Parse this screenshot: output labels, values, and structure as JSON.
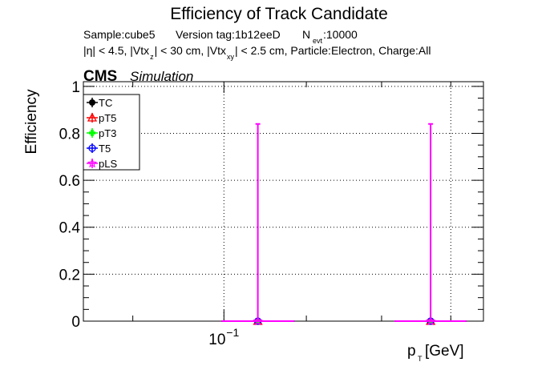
{
  "header": {
    "title": "Efficiency of Track Candidate",
    "info1_sample": "Sample:cube5",
    "info1_version": "Version tag:1b12eeD",
    "info1_nevt_n": "N",
    "info1_nevt_sub": "evt",
    "info1_nevt_val": ":10000",
    "info2_a": "|η| < 4.5, |Vtx",
    "info2_a_sub": "z",
    "info2_b": "| < 30 cm, |Vtx",
    "info2_b_sub": "xy",
    "info2_c": "| < 2.5 cm, Particle:Electron, Charge:All"
  },
  "cms_label": "CMS",
  "simulation_label": "Simulation",
  "chart_data": {
    "type": "scatter",
    "title": "Efficiency of Track Candidate",
    "ylabel": "Efficiency",
    "xlabel_main": "p",
    "xlabel_sub": "T",
    "xlabel_unit": " [GeV]",
    "xscale": "log",
    "xlim": [
      0.085,
      0.135
    ],
    "ylim": [
      0,
      1.02
    ],
    "grid": true,
    "legend_position": "top-left",
    "y_ticks": [
      "0",
      "0.2",
      "0.4",
      "0.6",
      "0.8",
      "1"
    ],
    "x_tick_label": {
      "base": "10",
      "exp": "−1",
      "value": 0.1
    },
    "series": [
      {
        "name": "TC",
        "color": "#000000",
        "marker": "filled-circle",
        "x": [
          0.104,
          0.127
        ],
        "y": [
          0,
          0
        ],
        "xerr_low": [
          0.0043,
          0.0052
        ],
        "xerr_high": [
          0.0045,
          0.0054
        ],
        "yerr_high": [
          0,
          0
        ]
      },
      {
        "name": "pT5",
        "color": "#ff0000",
        "marker": "open-triangle",
        "x": [
          0.104,
          0.127
        ],
        "y": [
          0,
          0
        ],
        "xerr_low": [
          0.0043,
          0.0052
        ],
        "xerr_high": [
          0.0045,
          0.0054
        ],
        "yerr_high": [
          0,
          0
        ]
      },
      {
        "name": "pT3",
        "color": "#00ff00",
        "marker": "filled-cross",
        "x": [
          0.104,
          0.127
        ],
        "y": [
          0,
          0
        ],
        "xerr_low": [
          0.0043,
          0.0052
        ],
        "xerr_high": [
          0.0045,
          0.0054
        ],
        "yerr_high": [
          0,
          0
        ]
      },
      {
        "name": "T5",
        "color": "#0000ff",
        "marker": "open-circle",
        "x": [
          0.104,
          0.127
        ],
        "y": [
          0,
          0
        ],
        "xerr_low": [
          0.0043,
          0.0052
        ],
        "xerr_high": [
          0.0045,
          0.0054
        ],
        "yerr_high": [
          0,
          0
        ]
      },
      {
        "name": "pLS",
        "color": "#ff00ff",
        "marker": "open-star",
        "x": [
          0.104,
          0.127
        ],
        "y": [
          0,
          0
        ],
        "xerr_low": [
          0.0043,
          0.0052
        ],
        "xerr_high": [
          0.0045,
          0.0054
        ],
        "yerr_high": [
          0.84,
          0.84
        ]
      }
    ]
  }
}
